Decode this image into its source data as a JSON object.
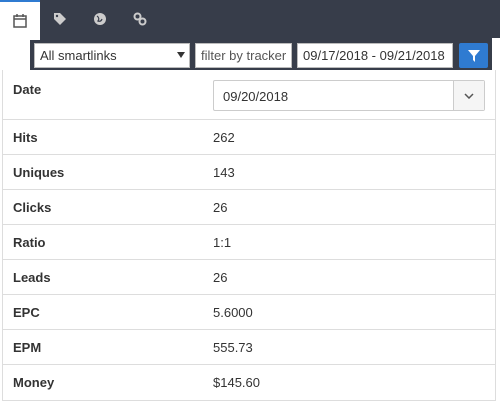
{
  "filters": {
    "smartlinks": "All smartlinks",
    "tracker_placeholder": "filter by tracker",
    "date_range": "09/17/2018 - 09/21/2018"
  },
  "table": {
    "date_label": "Date",
    "date_value": "09/20/2018",
    "rows": [
      [
        "Hits",
        "262"
      ],
      [
        "Uniques",
        "143"
      ],
      [
        "Clicks",
        "26"
      ],
      [
        "Ratio",
        "1:1"
      ],
      [
        "Leads",
        "26"
      ],
      [
        "EPC",
        "5.6000"
      ],
      [
        "EPM",
        "555.73"
      ],
      [
        "Money",
        "$145.60"
      ]
    ]
  }
}
